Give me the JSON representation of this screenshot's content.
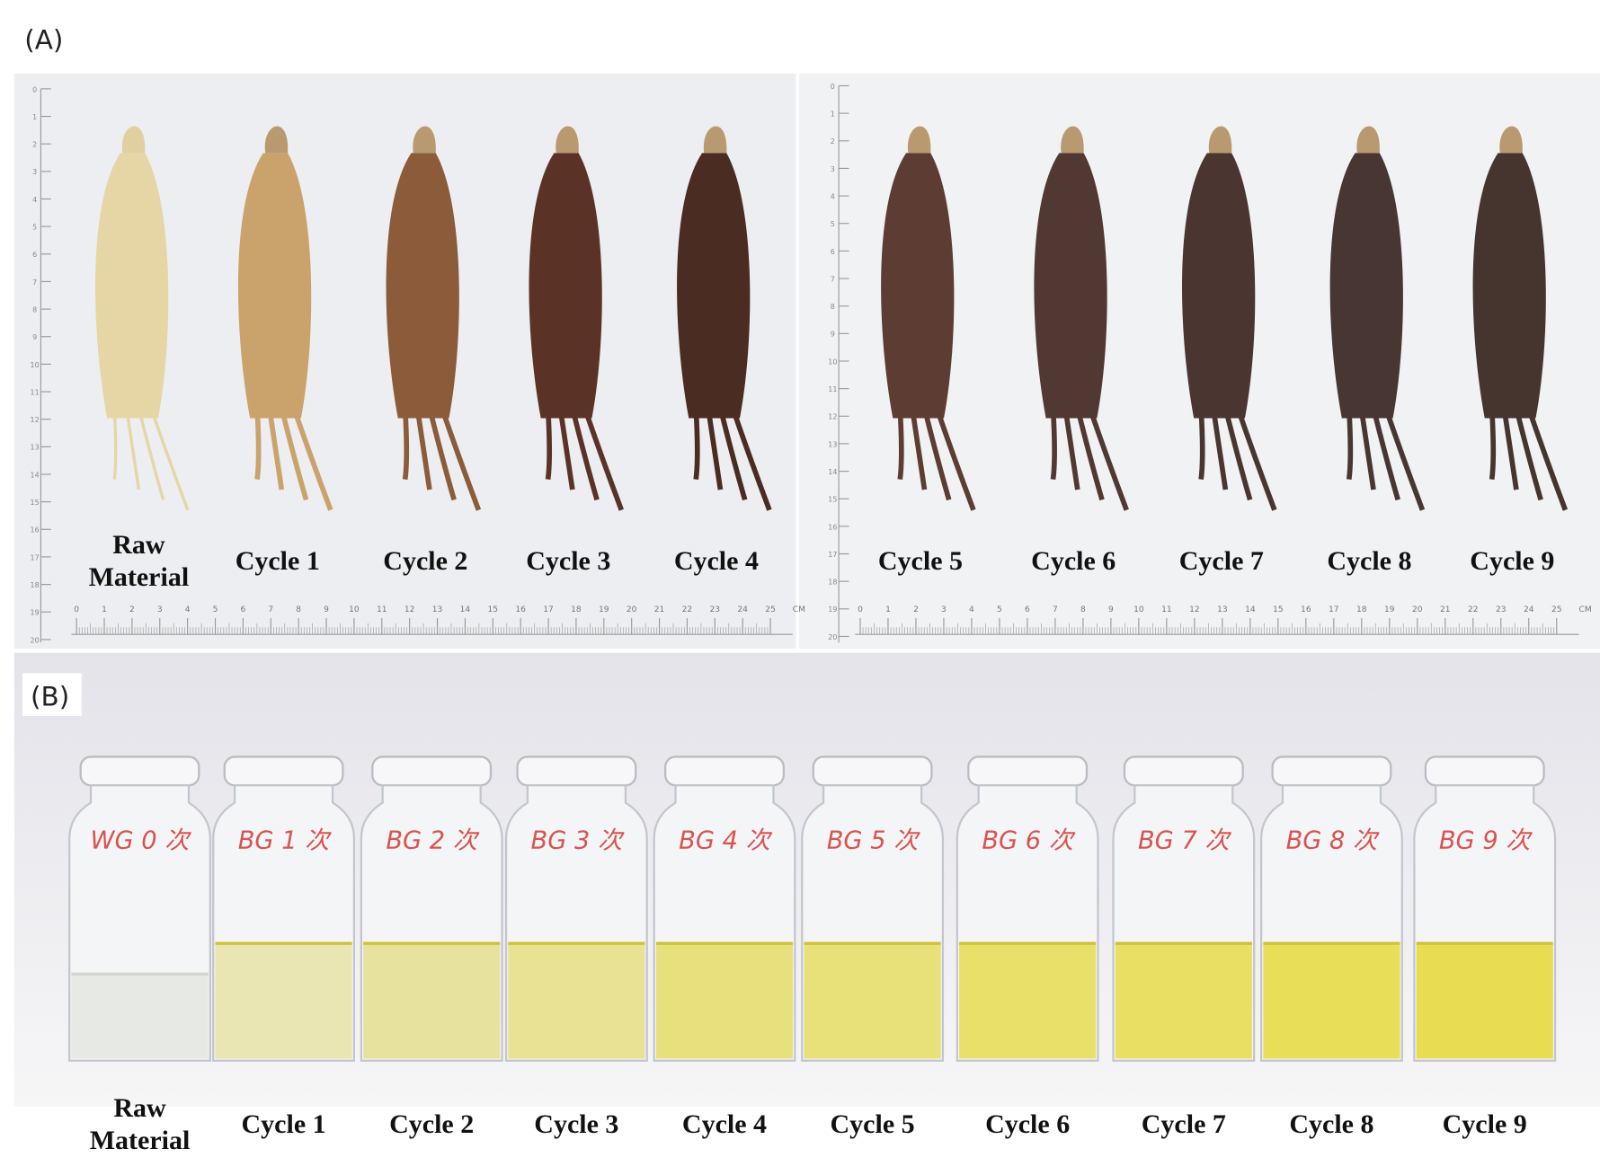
{
  "panel_a": {
    "label": "(A)",
    "samples": [
      "Raw Material",
      "Cycle 1",
      "Cycle 2",
      "Cycle 3",
      "Cycle 4",
      "Cycle 5",
      "Cycle 6",
      "Cycle 7",
      "Cycle 8",
      "Cycle 9"
    ],
    "ruler_labels": [
      0,
      1,
      2,
      3,
      4,
      5,
      6,
      7,
      8,
      9,
      10,
      11,
      12,
      13,
      14,
      15,
      16,
      17,
      18,
      19,
      20,
      21,
      22,
      23,
      24,
      25
    ],
    "ruler_unit": "CM",
    "vertical_ruler_labels": [
      0,
      1,
      2,
      3,
      4,
      5,
      6,
      7,
      8,
      9,
      10,
      11,
      12,
      13,
      14,
      15,
      16,
      17,
      18,
      19,
      20
    ]
  },
  "panel_b": {
    "label": "(B)",
    "vial_labels": [
      "WG 0 次",
      "BG 1 次",
      "BG 2 次",
      "BG 3 次",
      "BG 4 次",
      "BG 5 次",
      "BG 6 次",
      "BG 7 次",
      "BG 8 次",
      "BG 9 次"
    ],
    "samples": [
      "Raw Material",
      "Cycle 1",
      "Cycle 2",
      "Cycle 3",
      "Cycle 4",
      "Cycle 5",
      "Cycle 6",
      "Cycle 7",
      "Cycle 8",
      "Cycle 9"
    ]
  }
}
